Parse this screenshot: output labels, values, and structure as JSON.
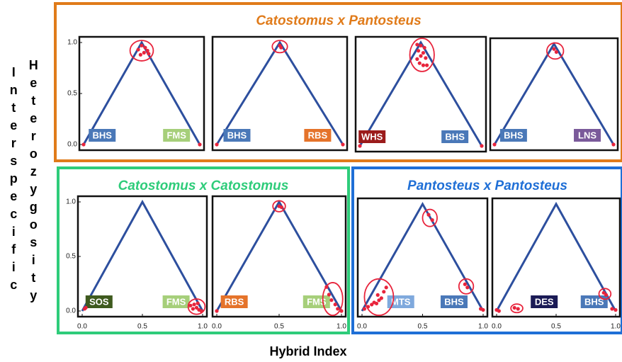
{
  "xlabel": "Hybrid Index",
  "ylabel": [
    "Interspecific",
    "Heterozygosity"
  ],
  "groups": [
    {
      "title": "Catostomus x Pantosteus",
      "color": "#e07b1a",
      "charts": [
        {
          "type": "scatter",
          "color": "#e8243c",
          "xlim": [
            0,
            1
          ],
          "ylim": [
            0,
            1
          ],
          "yticks": [
            {
              "value": 0,
              "label": "0.0"
            },
            {
              "value": 0.5,
              "label": "0.5"
            },
            {
              "value": 1,
              "label": "1.0"
            }
          ],
          "x": [
            0.47,
            0.5,
            0.52,
            0.55,
            0.49,
            0.53,
            0.56,
            0.0,
            1.0
          ],
          "y": [
            0.93,
            0.97,
            0.9,
            0.92,
            0.88,
            0.95,
            0.89,
            0.0,
            0.0
          ],
          "labels": [
            {
              "text": "BHS",
              "color": "#4a78b8"
            },
            {
              "text": "FMS",
              "color": "#a6cf7a"
            }
          ]
        },
        {
          "type": "scatter",
          "color": "#e8243c",
          "xlim": [
            0,
            1
          ],
          "ylim": [
            0,
            1
          ],
          "x": [
            0.5,
            0.51,
            0.0,
            1.0
          ],
          "y": [
            0.97,
            0.95,
            0.0,
            0.0
          ],
          "labels": [
            {
              "text": "BHS",
              "color": "#4a78b8"
            },
            {
              "text": "RBS",
              "color": "#e5732a"
            }
          ]
        },
        {
          "type": "scatter",
          "color": "#e8243c",
          "xlim": [
            0,
            1
          ],
          "ylim": [
            0,
            1
          ],
          "x": [
            0.47,
            0.5,
            0.53,
            0.48,
            0.52,
            0.5,
            0.47,
            0.54,
            0.49,
            0.52,
            0.55,
            0.0,
            1.0
          ],
          "y": [
            0.98,
            0.97,
            0.95,
            0.92,
            0.9,
            0.87,
            0.84,
            0.85,
            0.8,
            0.78,
            0.78,
            0.0,
            0.0
          ],
          "labels": [
            {
              "text": "WHS",
              "color": "#9b1b1b"
            },
            {
              "text": "BHS",
              "color": "#4a78b8"
            }
          ]
        },
        {
          "type": "scatter",
          "color": "#e8243c",
          "xlim": [
            0,
            1
          ],
          "ylim": [
            0,
            1
          ],
          "x": [
            0.5,
            0.52,
            0.0,
            1.0
          ],
          "y": [
            0.95,
            0.92,
            0.0,
            0.0
          ],
          "labels": [
            {
              "text": "BHS",
              "color": "#4a78b8"
            },
            {
              "text": "LNS",
              "color": "#7a5a9a"
            }
          ]
        }
      ]
    },
    {
      "title": "Catostomus x Catostomus",
      "color": "#2ecc7a",
      "charts": [
        {
          "type": "scatter",
          "color": "#e8243c",
          "xlim": [
            0,
            1
          ],
          "ylim": [
            0,
            1
          ],
          "yticks": [
            {
              "value": 0,
              "label": "0.0"
            },
            {
              "value": 0.5,
              "label": "0.5"
            },
            {
              "value": 1,
              "label": "1.0"
            }
          ],
          "xticks": [
            {
              "value": 0,
              "label": "0.0"
            },
            {
              "value": 0.5,
              "label": "0.5"
            },
            {
              "value": 1,
              "label": "1.0"
            }
          ],
          "x": [
            0.02,
            0.03,
            0.9,
            0.93,
            0.95,
            0.97,
            0.92,
            0.99,
            0.96
          ],
          "y": [
            0.02,
            0.03,
            0.05,
            0.06,
            0.03,
            0.01,
            0.02,
            0.0,
            0.07
          ],
          "labels": [
            {
              "text": "SOS",
              "color": "#3e5a1e"
            },
            {
              "text": "FMS",
              "color": "#a6cf7a"
            }
          ]
        },
        {
          "type": "scatter",
          "color": "#e8243c",
          "xlim": [
            0,
            1
          ],
          "ylim": [
            0,
            1
          ],
          "xticks": [
            {
              "value": 0,
              "label": "0.0"
            },
            {
              "value": 0.5,
              "label": "0.5"
            },
            {
              "value": 1,
              "label": "1.0"
            }
          ],
          "x": [
            0.0,
            0.5,
            0.52,
            0.88,
            0.9,
            0.92,
            0.95,
            0.97,
            1.0
          ],
          "y": [
            0.0,
            0.96,
            0.95,
            0.22,
            0.15,
            0.1,
            0.06,
            0.02,
            0.0
          ],
          "labels": [
            {
              "text": "RBS",
              "color": "#e5732a"
            },
            {
              "text": "FMS",
              "color": "#a6cf7a"
            }
          ]
        }
      ]
    },
    {
      "title": "Pantosteus x Pantosteus",
      "color": "#1f6fd6",
      "charts": [
        {
          "type": "scatter",
          "color": "#e8243c",
          "xlim": [
            0,
            1
          ],
          "ylim": [
            0,
            1
          ],
          "xticks": [
            {
              "value": 0,
              "label": "0.0"
            },
            {
              "value": 0.5,
              "label": "0.5"
            },
            {
              "value": 1,
              "label": "1.0"
            }
          ],
          "x": [
            0.02,
            0.05,
            0.08,
            0.1,
            0.12,
            0.14,
            0.16,
            0.18,
            0.2,
            0.13,
            0.55,
            0.58,
            0.85,
            0.87,
            0.98,
            1.0
          ],
          "y": [
            0.02,
            0.04,
            0.06,
            0.08,
            0.07,
            0.1,
            0.12,
            0.18,
            0.22,
            0.15,
            0.9,
            0.85,
            0.25,
            0.22,
            0.02,
            0.01
          ],
          "labels": [
            {
              "text": "MTS",
              "color": "#7fa9dd"
            },
            {
              "text": "BHS",
              "color": "#4a78b8"
            }
          ]
        },
        {
          "type": "scatter",
          "color": "#e8243c",
          "xlim": [
            0,
            1
          ],
          "ylim": [
            0,
            1
          ],
          "xticks": [
            {
              "value": 0,
              "label": "0.0"
            },
            {
              "value": 0.5,
              "label": "0.5"
            },
            {
              "value": 1,
              "label": "1.0"
            }
          ],
          "x": [
            0.0,
            0.02,
            0.15,
            0.18,
            0.9,
            0.92,
            0.97,
            1.0
          ],
          "y": [
            0.01,
            0.0,
            0.03,
            0.02,
            0.17,
            0.15,
            0.02,
            0.01
          ],
          "labels": [
            {
              "text": "DES",
              "color": "#1a1a55"
            },
            {
              "text": "BHS",
              "color": "#4a78b8"
            }
          ]
        }
      ]
    }
  ]
}
